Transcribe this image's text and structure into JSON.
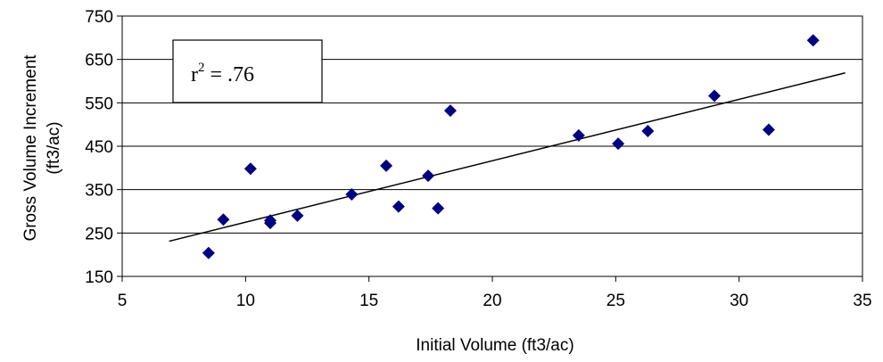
{
  "chart_data": {
    "type": "scatter",
    "title": "",
    "xlabel": "Initial Volume (ft3/ac)",
    "ylabel_line1": "Gross Volume Increment",
    "ylabel_line2": "(ft3/ac)",
    "xlim": [
      5,
      35
    ],
    "ylim": [
      150,
      750
    ],
    "xticks": [
      5,
      10,
      15,
      20,
      25,
      30,
      35
    ],
    "yticks": [
      150,
      250,
      350,
      450,
      550,
      650,
      750
    ],
    "grid": "horizontal",
    "point_color": "#000080",
    "points": [
      {
        "x": 8.5,
        "y": 204
      },
      {
        "x": 9.1,
        "y": 281
      },
      {
        "x": 10.2,
        "y": 398
      },
      {
        "x": 11.0,
        "y": 279
      },
      {
        "x": 11.0,
        "y": 273
      },
      {
        "x": 12.1,
        "y": 290
      },
      {
        "x": 14.3,
        "y": 339
      },
      {
        "x": 15.7,
        "y": 405
      },
      {
        "x": 16.2,
        "y": 311
      },
      {
        "x": 17.4,
        "y": 382
      },
      {
        "x": 17.8,
        "y": 307
      },
      {
        "x": 18.3,
        "y": 532
      },
      {
        "x": 23.5,
        "y": 475
      },
      {
        "x": 25.1,
        "y": 456
      },
      {
        "x": 26.3,
        "y": 485
      },
      {
        "x": 29.0,
        "y": 566
      },
      {
        "x": 31.2,
        "y": 488
      },
      {
        "x": 33.0,
        "y": 694
      }
    ],
    "trendline": {
      "x": [
        6.9,
        34.3
      ],
      "y": [
        231,
        619
      ]
    },
    "annotation": {
      "base": "r",
      "exponent": "2",
      "value": " = .76"
    }
  }
}
